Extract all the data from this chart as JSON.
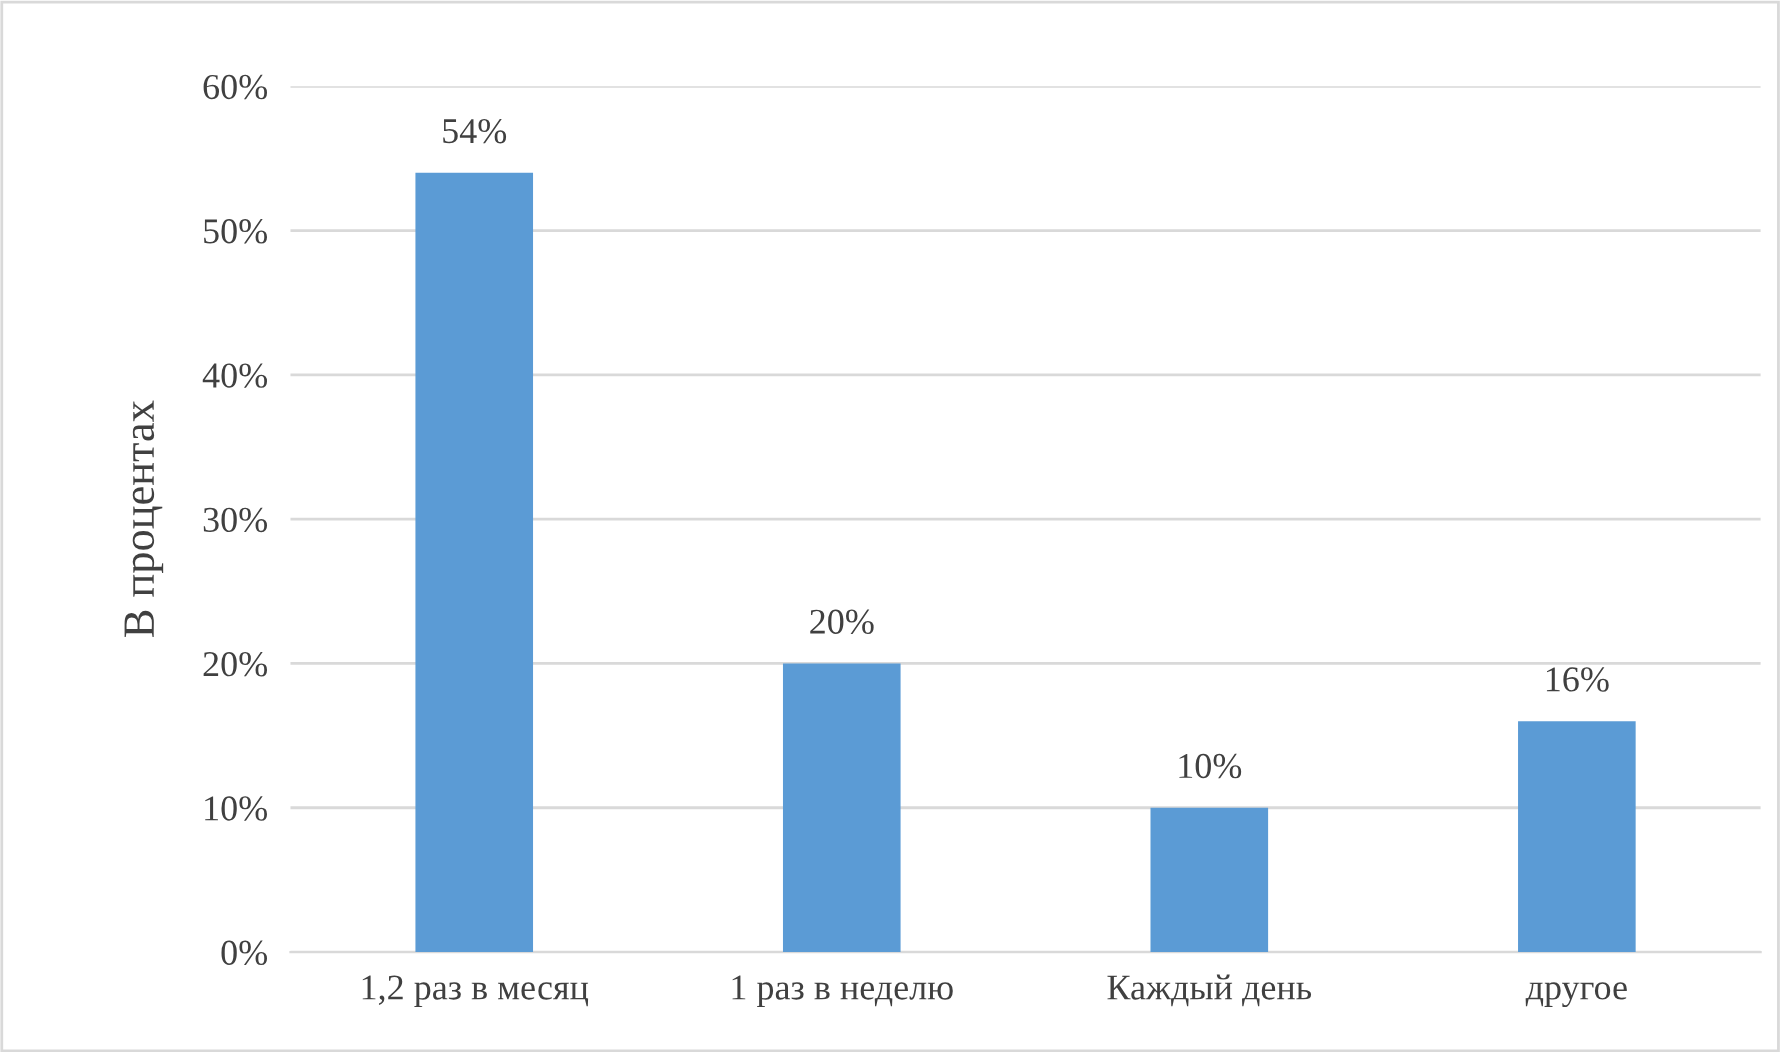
{
  "chart_data": {
    "type": "bar",
    "ylabel": "В процентах",
    "categories": [
      "1,2 раз в месяц",
      "1 раз в неделю",
      "Каждый день",
      "другое"
    ],
    "values": [
      54,
      20,
      10,
      16
    ],
    "color": "#5b9bd5",
    "value_labels": [
      "54%",
      "20%",
      "10%",
      "16%"
    ],
    "ylim": [
      0,
      60
    ],
    "yticks": [
      {
        "value": 0,
        "label": "0%"
      },
      {
        "value": 10,
        "label": "10%"
      },
      {
        "value": 20,
        "label": "20%"
      },
      {
        "value": 30,
        "label": "30%"
      },
      {
        "value": 40,
        "label": "40%"
      },
      {
        "value": 50,
        "label": "50%"
      },
      {
        "value": 60,
        "label": "60%"
      }
    ],
    "grid": "y",
    "legend": false
  }
}
